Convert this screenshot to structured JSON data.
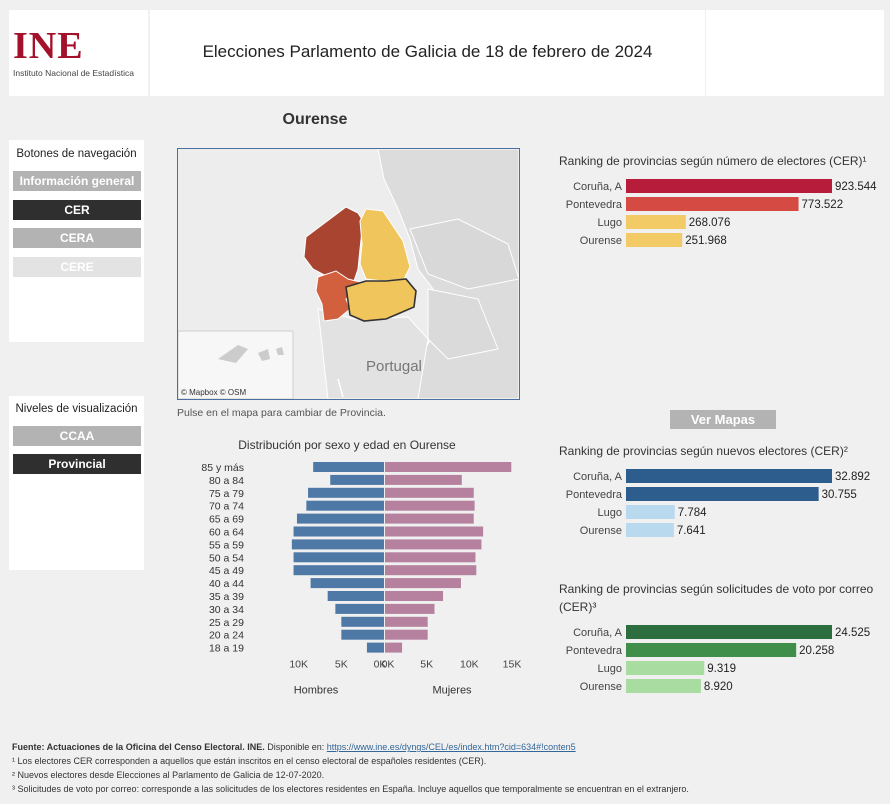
{
  "header": {
    "logo_text": "INE",
    "logo_subtitle": "Instituto Nacional de Estadística",
    "title": "Elecciones Parlamento de Galicia de 18 de febrero de 2024"
  },
  "nav": {
    "heading": "Botones de navegación",
    "buttons": [
      "Información general",
      "CER",
      "CERA",
      "CERE"
    ],
    "active": "CER"
  },
  "levels": {
    "heading": "Niveles de visualización",
    "buttons": [
      "CCAA",
      "Provincial"
    ],
    "active": "Provincial"
  },
  "province_title": "Ourense",
  "map": {
    "hint": "Pulse en el mapa para cambiar de Provincia.",
    "label_country": "Portugal",
    "attribution": "© Mapbox  © OSM"
  },
  "ver_mapas_label": "Ver Mapas",
  "colors": {
    "hombres": "#4e79a7",
    "mujeres": "#b5819f",
    "cer_top": "#b71c3a",
    "cer_second": "#d64a44",
    "cer_rest": "#f2cb66",
    "nuevos_top": "#2c5d8c",
    "nuevos_rest": "#b9d9ee",
    "correo_top": "#2c6e3e",
    "correo_second": "#3f8f4a",
    "correo_rest": "#a8dca0"
  },
  "chart_data": [
    {
      "type": "bar",
      "subtype": "population-pyramid",
      "title": "Distribución por sexo y edad en Ourense",
      "categories": [
        "85 y más",
        "80 a 84",
        "75 a 79",
        "70 a 74",
        "65 a 69",
        "60 a 64",
        "55 a 59",
        "50 a 54",
        "45 a 49",
        "40 a 44",
        "35 a 39",
        "30 a 34",
        "25 a 29",
        "20 a 24",
        "18 a 19"
      ],
      "series": [
        {
          "name": "Hombres",
          "values": [
            8300,
            6300,
            8900,
            9100,
            10200,
            10600,
            10800,
            10600,
            10600,
            8600,
            6600,
            5700,
            5000,
            5000,
            2000
          ]
        },
        {
          "name": "Mujeres",
          "values": [
            14800,
            9000,
            10400,
            10500,
            10400,
            11500,
            11300,
            10600,
            10700,
            8900,
            6800,
            5800,
            5000,
            5000,
            2000
          ]
        }
      ],
      "x_ticks_left": [
        "10K",
        "5K",
        "0K"
      ],
      "x_ticks_right": [
        "0K",
        "5K",
        "10K",
        "15K"
      ],
      "xlim": [
        0,
        15000
      ]
    },
    {
      "type": "bar",
      "title": "Ranking de provincias según número de electores (CER)¹",
      "categories": [
        "Coruña, A",
        "Pontevedra",
        "Lugo",
        "Ourense"
      ],
      "values": [
        923544,
        773522,
        268076,
        251968
      ],
      "labels": [
        "923.544",
        "773.522",
        "268.076",
        "251.968"
      ]
    },
    {
      "type": "bar",
      "title": "Ranking de provincias según nuevos electores (CER)²",
      "categories": [
        "Coruña, A",
        "Pontevedra",
        "Lugo",
        "Ourense"
      ],
      "values": [
        32892,
        30755,
        7784,
        7641
      ],
      "labels": [
        "32.892",
        "30.755",
        "7.784",
        "7.641"
      ]
    },
    {
      "type": "bar",
      "title": "Ranking de provincias según solicitudes de voto por correo (CER)³",
      "categories": [
        "Coruña, A",
        "Pontevedra",
        "Lugo",
        "Ourense"
      ],
      "values": [
        24525,
        20258,
        9319,
        8920
      ],
      "labels": [
        "24.525",
        "20.258",
        "9.319",
        "8.920"
      ]
    }
  ],
  "footer": {
    "source_label": "Fuente: Actuaciones de la Oficina del Censo Electoral. INE.",
    "source_text": " Disponible en: ",
    "source_link": "https://www.ine.es/dyngs/CEL/es/index.htm?cid=634#!conten5",
    "note1": "¹ Los electores CER corresponden a aquellos que están inscritos en el censo electoral de españoles residentes (CER).",
    "note2": "² Nuevos electores desde Elecciones al Parlamento de Galicia de 12-07-2020.",
    "note3": "³ Solicitudes de voto por correo: corresponde a las solicitudes de los electores residentes en España. Incluye aquellos que temporalmente se encuentran en el extranjero."
  }
}
